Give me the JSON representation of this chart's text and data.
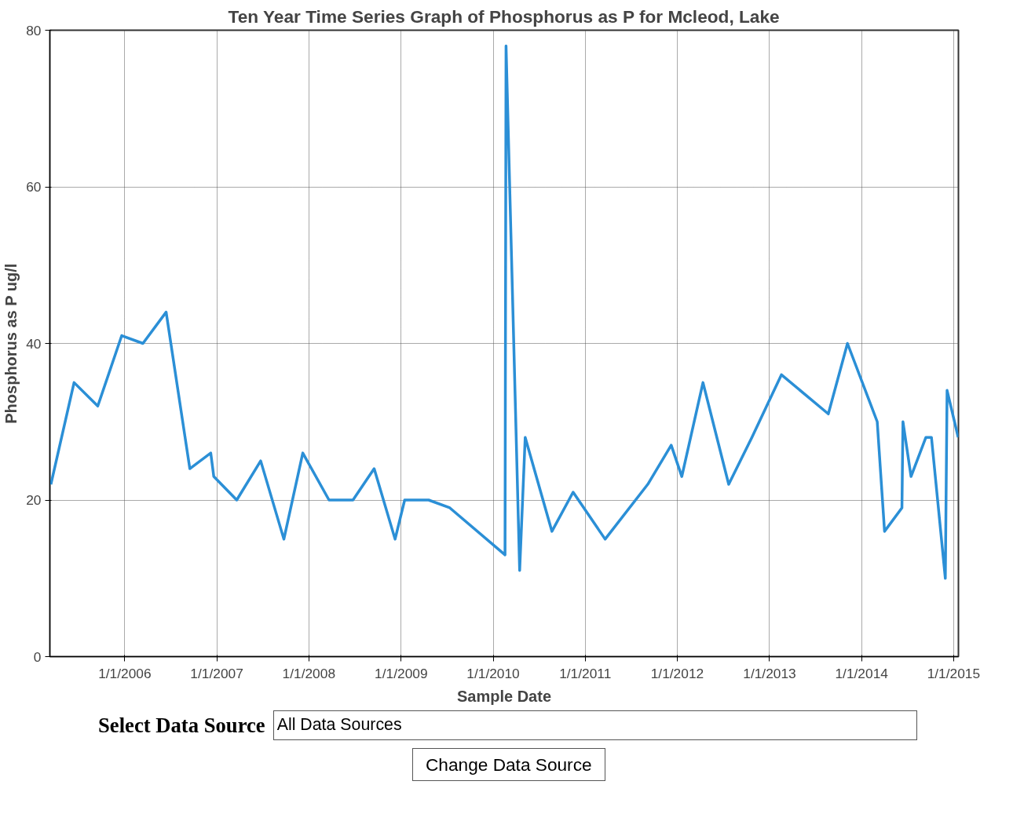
{
  "chart_data": {
    "type": "line",
    "title": "Ten Year Time Series Graph of Phosphorus as P for Mcleod, Lake",
    "xlabel": "Sample Date",
    "ylabel": "Phosphorus as P ug/l",
    "x": [
      "2005-03-14",
      "2005-06-14",
      "2005-09-16",
      "2005-12-20",
      "2006-03-14",
      "2006-06-14",
      "2006-09-16",
      "2006-12-08",
      "2006-12-20",
      "2007-03-21",
      "2007-06-24",
      "2007-09-24",
      "2007-12-08",
      "2008-03-21",
      "2008-06-24",
      "2008-09-16",
      "2008-12-08",
      "2009-01-15",
      "2009-04-20",
      "2009-07-13",
      "2010-02-17",
      "2010-02-21",
      "2010-04-16",
      "2010-05-08",
      "2010-08-22",
      "2010-11-14",
      "2011-03-21",
      "2011-09-06",
      "2011-12-08",
      "2012-01-19",
      "2012-04-12",
      "2012-07-23",
      "2012-10-23",
      "2013-02-17",
      "2013-08-22",
      "2013-11-06",
      "2014-03-04",
      "2014-04-02",
      "2014-06-10",
      "2014-06-14",
      "2014-07-16",
      "2014-09-13",
      "2014-10-05",
      "2014-11-29",
      "2014-12-06",
      "2015-01-19"
    ],
    "series": [
      {
        "color": "#2b8fd6",
        "values": [
          22,
          35,
          32,
          41,
          40,
          44,
          24,
          26,
          23,
          20,
          25,
          15,
          26,
          20,
          20,
          24,
          15,
          20,
          20,
          19,
          13,
          78,
          11,
          28,
          16,
          21,
          15,
          22,
          27,
          23,
          35,
          22,
          28,
          36,
          31,
          40,
          30,
          16,
          19,
          30,
          23,
          28,
          28,
          10,
          34,
          28
        ]
      }
    ],
    "xlim": [
      "2005-03-10",
      "2015-01-20"
    ],
    "xticks": [
      {
        "value": "2006-01-01",
        "label": "1/1/2006"
      },
      {
        "value": "2007-01-01",
        "label": "1/1/2007"
      },
      {
        "value": "2008-01-01",
        "label": "1/1/2008"
      },
      {
        "value": "2009-01-01",
        "label": "1/1/2009"
      },
      {
        "value": "2010-01-01",
        "label": "1/1/2010"
      },
      {
        "value": "2011-01-01",
        "label": "1/1/2011"
      },
      {
        "value": "2012-01-01",
        "label": "1/1/2012"
      },
      {
        "value": "2013-01-01",
        "label": "1/1/2013"
      },
      {
        "value": "2014-01-01",
        "label": "1/1/2014"
      },
      {
        "value": "2015-01-01",
        "label": "1/1/2015"
      }
    ],
    "ylim": [
      0,
      80
    ],
    "yticks": [
      0,
      20,
      40,
      60,
      80
    ],
    "grid": true,
    "line_style": "solid",
    "annotations": [
      "Select Data Source",
      "All Data Sources",
      "Change Data Source"
    ]
  }
}
